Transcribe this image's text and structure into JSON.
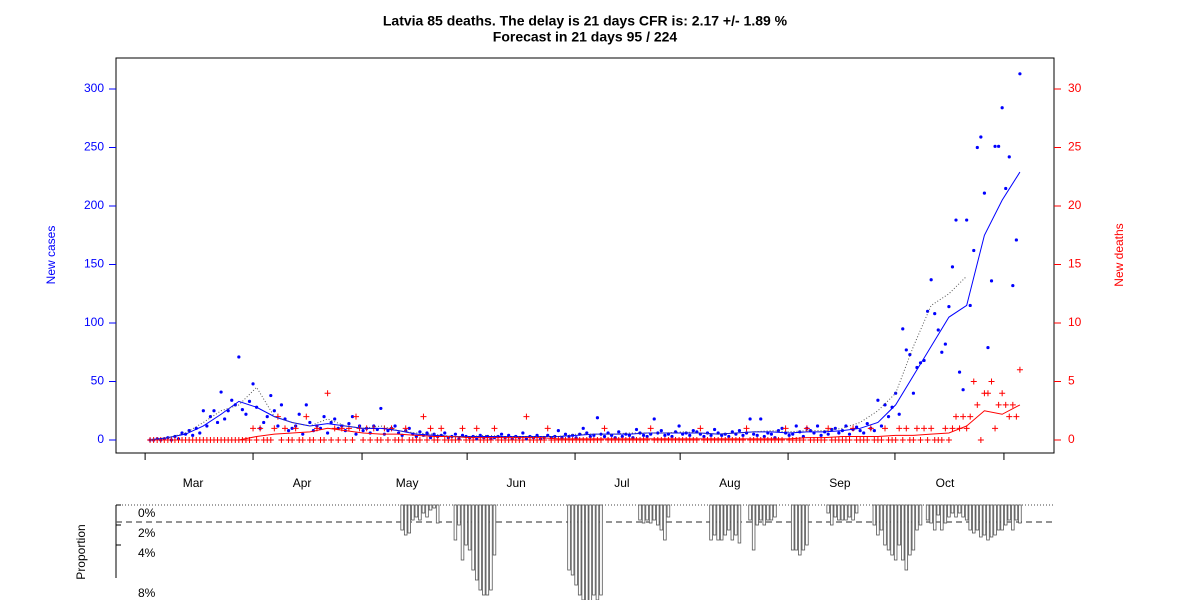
{
  "chart_data": {
    "type": "line",
    "title": "Latvia 85 deaths. The delay is 21 days CFR is: 2.17 +/- 1.89 %",
    "subtitle": "Forecast in 21 days 95 / 224",
    "ylabel": "New cases",
    "y2label": "New deaths",
    "xlim": [
      -9.6,
      254.6
    ],
    "xticks": [
      -1.4,
      29.0,
      59.7,
      89.3,
      119.7,
      149.3,
      179.7,
      209.8,
      240.5
    ],
    "month_labels": [
      {
        "value": 12.1,
        "label": "Mar"
      },
      {
        "value": 42.8,
        "label": "Apr"
      },
      {
        "value": 72.4,
        "label": "May"
      },
      {
        "value": 103.1,
        "label": "Jun"
      },
      {
        "value": 132.9,
        "label": "Jul"
      },
      {
        "value": 163.3,
        "label": "Aug"
      },
      {
        "value": 194.3,
        "label": "Sep"
      },
      {
        "value": 223.9,
        "label": "Oct"
      }
    ],
    "ylim": [
      -11.1,
      326.5
    ],
    "yticks": [
      0,
      50,
      100,
      150,
      200,
      250,
      300
    ],
    "y2lim": [
      -1.11,
      32.65
    ],
    "y2ticks": [
      0,
      5,
      10,
      15,
      20,
      25,
      30
    ],
    "x": [
      0,
      1,
      2,
      3,
      4,
      5,
      6,
      7,
      8,
      9,
      10,
      11,
      12,
      13,
      14,
      15,
      16,
      17,
      18,
      19,
      20,
      21,
      22,
      23,
      24,
      25,
      26,
      27,
      28,
      29,
      30,
      31,
      32,
      33,
      34,
      35,
      36,
      37,
      38,
      39,
      40,
      41,
      42,
      43,
      44,
      45,
      46,
      47,
      48,
      49,
      50,
      51,
      52,
      53,
      54,
      55,
      56,
      57,
      58,
      59,
      60,
      61,
      62,
      63,
      64,
      65,
      66,
      67,
      68,
      69,
      70,
      71,
      72,
      73,
      74,
      75,
      76,
      77,
      78,
      79,
      80,
      81,
      82,
      83,
      84,
      85,
      86,
      87,
      88,
      89,
      90,
      91,
      92,
      93,
      94,
      95,
      96,
      97,
      98,
      99,
      100,
      101,
      102,
      103,
      104,
      105,
      106,
      107,
      108,
      109,
      110,
      111,
      112,
      113,
      114,
      115,
      116,
      117,
      118,
      119,
      120,
      121,
      122,
      123,
      124,
      125,
      126,
      127,
      128,
      129,
      130,
      131,
      132,
      133,
      134,
      135,
      136,
      137,
      138,
      139,
      140,
      141,
      142,
      143,
      144,
      145,
      146,
      147,
      148,
      149,
      150,
      151,
      152,
      153,
      154,
      155,
      156,
      157,
      158,
      159,
      160,
      161,
      162,
      163,
      164,
      165,
      166,
      167,
      168,
      169,
      170,
      171,
      172,
      173,
      174,
      175,
      176,
      177,
      178,
      179,
      180,
      181,
      182,
      183,
      184,
      185,
      186,
      187,
      188,
      189,
      190,
      191,
      192,
      193,
      194,
      195,
      196,
      197,
      198,
      199,
      200,
      201,
      202,
      203,
      204,
      205,
      206,
      207,
      208,
      209,
      210,
      211,
      212,
      213,
      214,
      215,
      216,
      217,
      218,
      219,
      220,
      221,
      222,
      223,
      224,
      225,
      226,
      227,
      228,
      229,
      230,
      231,
      232,
      233,
      234,
      235,
      236,
      237,
      238,
      239,
      240,
      241,
      242,
      243,
      244,
      245
    ],
    "series": [
      {
        "style": "points",
        "color": "#0000ff",
        "values": [
          0,
          0,
          1,
          0,
          1,
          2,
          0,
          3,
          1,
          6,
          5,
          8,
          4,
          10,
          6,
          25,
          12,
          20,
          25,
          15,
          41,
          18,
          25,
          34,
          30,
          71,
          26,
          22,
          33,
          48,
          28,
          10,
          15,
          20,
          38,
          25,
          12,
          30,
          18,
          8,
          10,
          12,
          22,
          5,
          30,
          15,
          8,
          12,
          10,
          20,
          6,
          15,
          18,
          10,
          12,
          8,
          14,
          20,
          5,
          12,
          8,
          10,
          6,
          12,
          9,
          27,
          5,
          8,
          10,
          12,
          6,
          4,
          8,
          10,
          5,
          3,
          7,
          4,
          6,
          2,
          5,
          3,
          4,
          6,
          2,
          3,
          5,
          1,
          4,
          3,
          2,
          3,
          1,
          4,
          2,
          3,
          1,
          2,
          3,
          5,
          2,
          4,
          1,
          3,
          2,
          6,
          1,
          3,
          2,
          4,
          1,
          2,
          4,
          2,
          3,
          8,
          2,
          5,
          3,
          4,
          2,
          5,
          10,
          6,
          3,
          4,
          19,
          5,
          3,
          6,
          4,
          2,
          7,
          3,
          5,
          4,
          2,
          9,
          6,
          4,
          3,
          5,
          18,
          6,
          8,
          4,
          5,
          3,
          7,
          12,
          5,
          6,
          4,
          8,
          7,
          5,
          3,
          6,
          4,
          9,
          6,
          4,
          5,
          3,
          7,
          5,
          8,
          4,
          6,
          18,
          5,
          4,
          18,
          3,
          6,
          5,
          2,
          8,
          10,
          6,
          4,
          5,
          12,
          7,
          3,
          10,
          8,
          6,
          12,
          4,
          7,
          5,
          9,
          10,
          6,
          8,
          12,
          5,
          9,
          11,
          8,
          6,
          14,
          10,
          8,
          34,
          12,
          30,
          20,
          28,
          40,
          22,
          95,
          77,
          73,
          40,
          62,
          66,
          68,
          110,
          137,
          108,
          94,
          75,
          82,
          114,
          148,
          188,
          58,
          43,
          188,
          115,
          162,
          250,
          259,
          211,
          79,
          136,
          251,
          251,
          284,
          215,
          242,
          132,
          171,
          313
        ]
      },
      {
        "style": "plus",
        "color": "#ff0000",
        "axis": "y2",
        "values": [
          0,
          0,
          0,
          0,
          0,
          0,
          0,
          0,
          0,
          0,
          0,
          0,
          0,
          0,
          0,
          0,
          0,
          0,
          0,
          0,
          0,
          0,
          0,
          0,
          0,
          0,
          0,
          0,
          0,
          1,
          0,
          1,
          0,
          0,
          0,
          1,
          2,
          0,
          1,
          0,
          0,
          1,
          0,
          0,
          2,
          0,
          0,
          1,
          0,
          0,
          4,
          0,
          1,
          0,
          1,
          0,
          1,
          0,
          2,
          1,
          0,
          1,
          0,
          1,
          0,
          0,
          1,
          0,
          1,
          0,
          0,
          0,
          1,
          0,
          0,
          0,
          0,
          2,
          0,
          1,
          0,
          0,
          1,
          0,
          0,
          0,
          0,
          0,
          1,
          0,
          0,
          0,
          1,
          0,
          0,
          0,
          0,
          1,
          0,
          0,
          0,
          0,
          0,
          0,
          0,
          0,
          2,
          0,
          0,
          0,
          0,
          0,
          1,
          0,
          0,
          0,
          0,
          0,
          0,
          0,
          0,
          0,
          0,
          0,
          0,
          0,
          0,
          0,
          1,
          0,
          0,
          0,
          0,
          0,
          0,
          0,
          0,
          0,
          0,
          0,
          0,
          1,
          0,
          0,
          0,
          0,
          0,
          0,
          0,
          0,
          0,
          0,
          0,
          0,
          0,
          1,
          0,
          0,
          0,
          0,
          0,
          0,
          0,
          0,
          0,
          0,
          0,
          0,
          1,
          0,
          0,
          0,
          0,
          0,
          0,
          0,
          0,
          0,
          0,
          1,
          0,
          0,
          0,
          0,
          0,
          1,
          0,
          0,
          0,
          0,
          0,
          1,
          0,
          0,
          0,
          0,
          0,
          0,
          1,
          0,
          0,
          0,
          0,
          1,
          0,
          0,
          0,
          1,
          0,
          0,
          0,
          1,
          0,
          1,
          0,
          0,
          1,
          0,
          1,
          0,
          1,
          0,
          0,
          0,
          1,
          0,
          1,
          2,
          1,
          2,
          1,
          2,
          5,
          3,
          0,
          4,
          4,
          5,
          1,
          3,
          4,
          3,
          2,
          3,
          2,
          6
        ]
      },
      {
        "style": "line",
        "color": "#0000ff",
        "x": [
          0,
          5,
          10,
          15,
          20,
          25,
          30,
          35,
          40,
          45,
          50,
          55,
          60,
          65,
          70,
          75,
          80,
          85,
          90,
          95,
          100,
          105,
          110,
          115,
          120,
          125,
          130,
          135,
          140,
          145,
          150,
          155,
          160,
          165,
          170,
          175,
          180,
          185,
          190,
          195,
          200,
          205,
          210,
          215,
          220,
          225,
          230,
          235,
          240,
          245
        ],
        "values": [
          0,
          2,
          5,
          12,
          22,
          33,
          28,
          20,
          15,
          12,
          14,
          12,
          10,
          10,
          8,
          5,
          4,
          3,
          3,
          3,
          3,
          3,
          3,
          3,
          4,
          5,
          5,
          5,
          6,
          6,
          6,
          6,
          5,
          6,
          7,
          7,
          6,
          7,
          7,
          8,
          10,
          15,
          30,
          55,
          80,
          105,
          115,
          175,
          205,
          229
        ]
      },
      {
        "style": "line",
        "color": "#ff0000",
        "axis": "y2",
        "x": [
          0,
          5,
          10,
          15,
          20,
          25,
          30,
          35,
          40,
          45,
          50,
          55,
          60,
          65,
          70,
          75,
          80,
          85,
          90,
          95,
          100,
          105,
          110,
          115,
          120,
          125,
          130,
          135,
          140,
          145,
          150,
          155,
          160,
          165,
          170,
          175,
          180,
          185,
          190,
          195,
          200,
          205,
          210,
          215,
          220,
          225,
          230,
          235,
          240,
          245
        ],
        "values": [
          0,
          0,
          0,
          0,
          0,
          0,
          0.3,
          0.5,
          0.6,
          0.7,
          1,
          0.8,
          0.6,
          0.5,
          0.5,
          0.4,
          0.3,
          0.3,
          0.2,
          0.2,
          0.2,
          0.2,
          0.2,
          0.1,
          0.1,
          0.1,
          0.1,
          0.1,
          0.1,
          0.1,
          0.1,
          0.1,
          0.1,
          0.1,
          0.1,
          0.1,
          0.1,
          0.2,
          0.2,
          0.3,
          0.3,
          0.3,
          0.4,
          0.4,
          0.5,
          0.6,
          1.2,
          2.5,
          2.2,
          3
        ]
      },
      {
        "style": "dotted",
        "color": "#555555",
        "x": [
          0,
          5,
          10,
          15,
          20,
          25,
          30,
          35,
          40,
          45,
          50,
          55,
          60,
          65,
          70,
          75,
          80,
          85,
          90,
          95,
          100,
          105,
          110,
          115,
          120,
          125,
          130,
          135,
          140,
          145,
          150,
          155,
          160,
          165,
          170,
          175,
          180,
          185,
          190,
          195,
          200,
          205,
          210,
          215,
          220,
          225,
          230
        ],
        "values": [
          0,
          2,
          6,
          15,
          25,
          30,
          45,
          20,
          15,
          12,
          18,
          12,
          10,
          12,
          8,
          6,
          5,
          3,
          3,
          4,
          3,
          3,
          3,
          3,
          5,
          5,
          5,
          6,
          6,
          6,
          7,
          6,
          5,
          6,
          7,
          8,
          7,
          8,
          8,
          10,
          15,
          25,
          40,
          80,
          115,
          125,
          140
        ]
      }
    ],
    "proportion": {
      "ylabel": "Proportion",
      "ylim": [
        0,
        9.5
      ],
      "yticks": [
        {
          "value": 0,
          "label": "0%"
        },
        {
          "value": 2,
          "label": "2%"
        },
        {
          "value": 4,
          "label": "4%"
        },
        {
          "value": 8,
          "label": "8%"
        }
      ],
      "reference": 1.7,
      "color": "#555555",
      "x": [
        71,
        72,
        73,
        74,
        75,
        76,
        77,
        78,
        79,
        80,
        81,
        86,
        87,
        88,
        89,
        90,
        91,
        92,
        93,
        94,
        95,
        96,
        97,
        118,
        119,
        120,
        121,
        122,
        123,
        124,
        125,
        126,
        127,
        138,
        139,
        140,
        141,
        142,
        143,
        144,
        145,
        146,
        158,
        159,
        160,
        161,
        162,
        163,
        164,
        165,
        166,
        169,
        170,
        171,
        172,
        173,
        174,
        175,
        176,
        181,
        182,
        183,
        184,
        185,
        191,
        192,
        193,
        194,
        195,
        196,
        197,
        198,
        199,
        204,
        205,
        206,
        207,
        208,
        209,
        210,
        211,
        212,
        213,
        214,
        215,
        216,
        217,
        219,
        220,
        221,
        222,
        223,
        224,
        225,
        226,
        227,
        228,
        229,
        230,
        231,
        232,
        233,
        234,
        235,
        236,
        237,
        238,
        239,
        240,
        241,
        242,
        243,
        244,
        245
      ],
      "values": [
        2.5,
        3,
        2.8,
        1.5,
        1.2,
        1.5,
        0.8,
        1.2,
        0.5,
        0.3,
        1.8,
        3.5,
        2,
        5.5,
        4,
        4.5,
        6.5,
        7.5,
        8.5,
        9,
        9,
        8.5,
        5,
        6.5,
        7,
        8,
        9,
        9.5,
        10,
        10,
        9,
        9.5,
        9,
        1.5,
        1.8,
        1.5,
        1.8,
        1.5,
        2,
        2.5,
        3.5,
        1.2,
        3.5,
        3,
        3.5,
        3.5,
        3,
        2.5,
        3.5,
        3,
        3.8,
        1.5,
        4.5,
        2,
        1.5,
        2,
        1.5,
        1.5,
        1.2,
        4.5,
        4.5,
        5,
        4.5,
        4,
        0.8,
        2,
        1.2,
        1.5,
        1.5,
        1.5,
        1.2,
        1.5,
        0.8,
        2,
        3,
        2.5,
        4,
        4.5,
        5,
        5.5,
        4,
        5.5,
        6.5,
        5,
        4.5,
        2.5,
        2,
        1.5,
        1.8,
        2.5,
        1,
        2.5,
        1.8,
        1.2,
        0.8,
        1.2,
        0.8,
        1.2,
        1.5,
        2.5,
        2.8,
        2.5,
        3.2,
        3,
        3.5,
        3.2,
        3,
        2.5,
        2.5,
        2,
        1.5,
        2.5,
        1.5,
        1.8
      ]
    }
  }
}
